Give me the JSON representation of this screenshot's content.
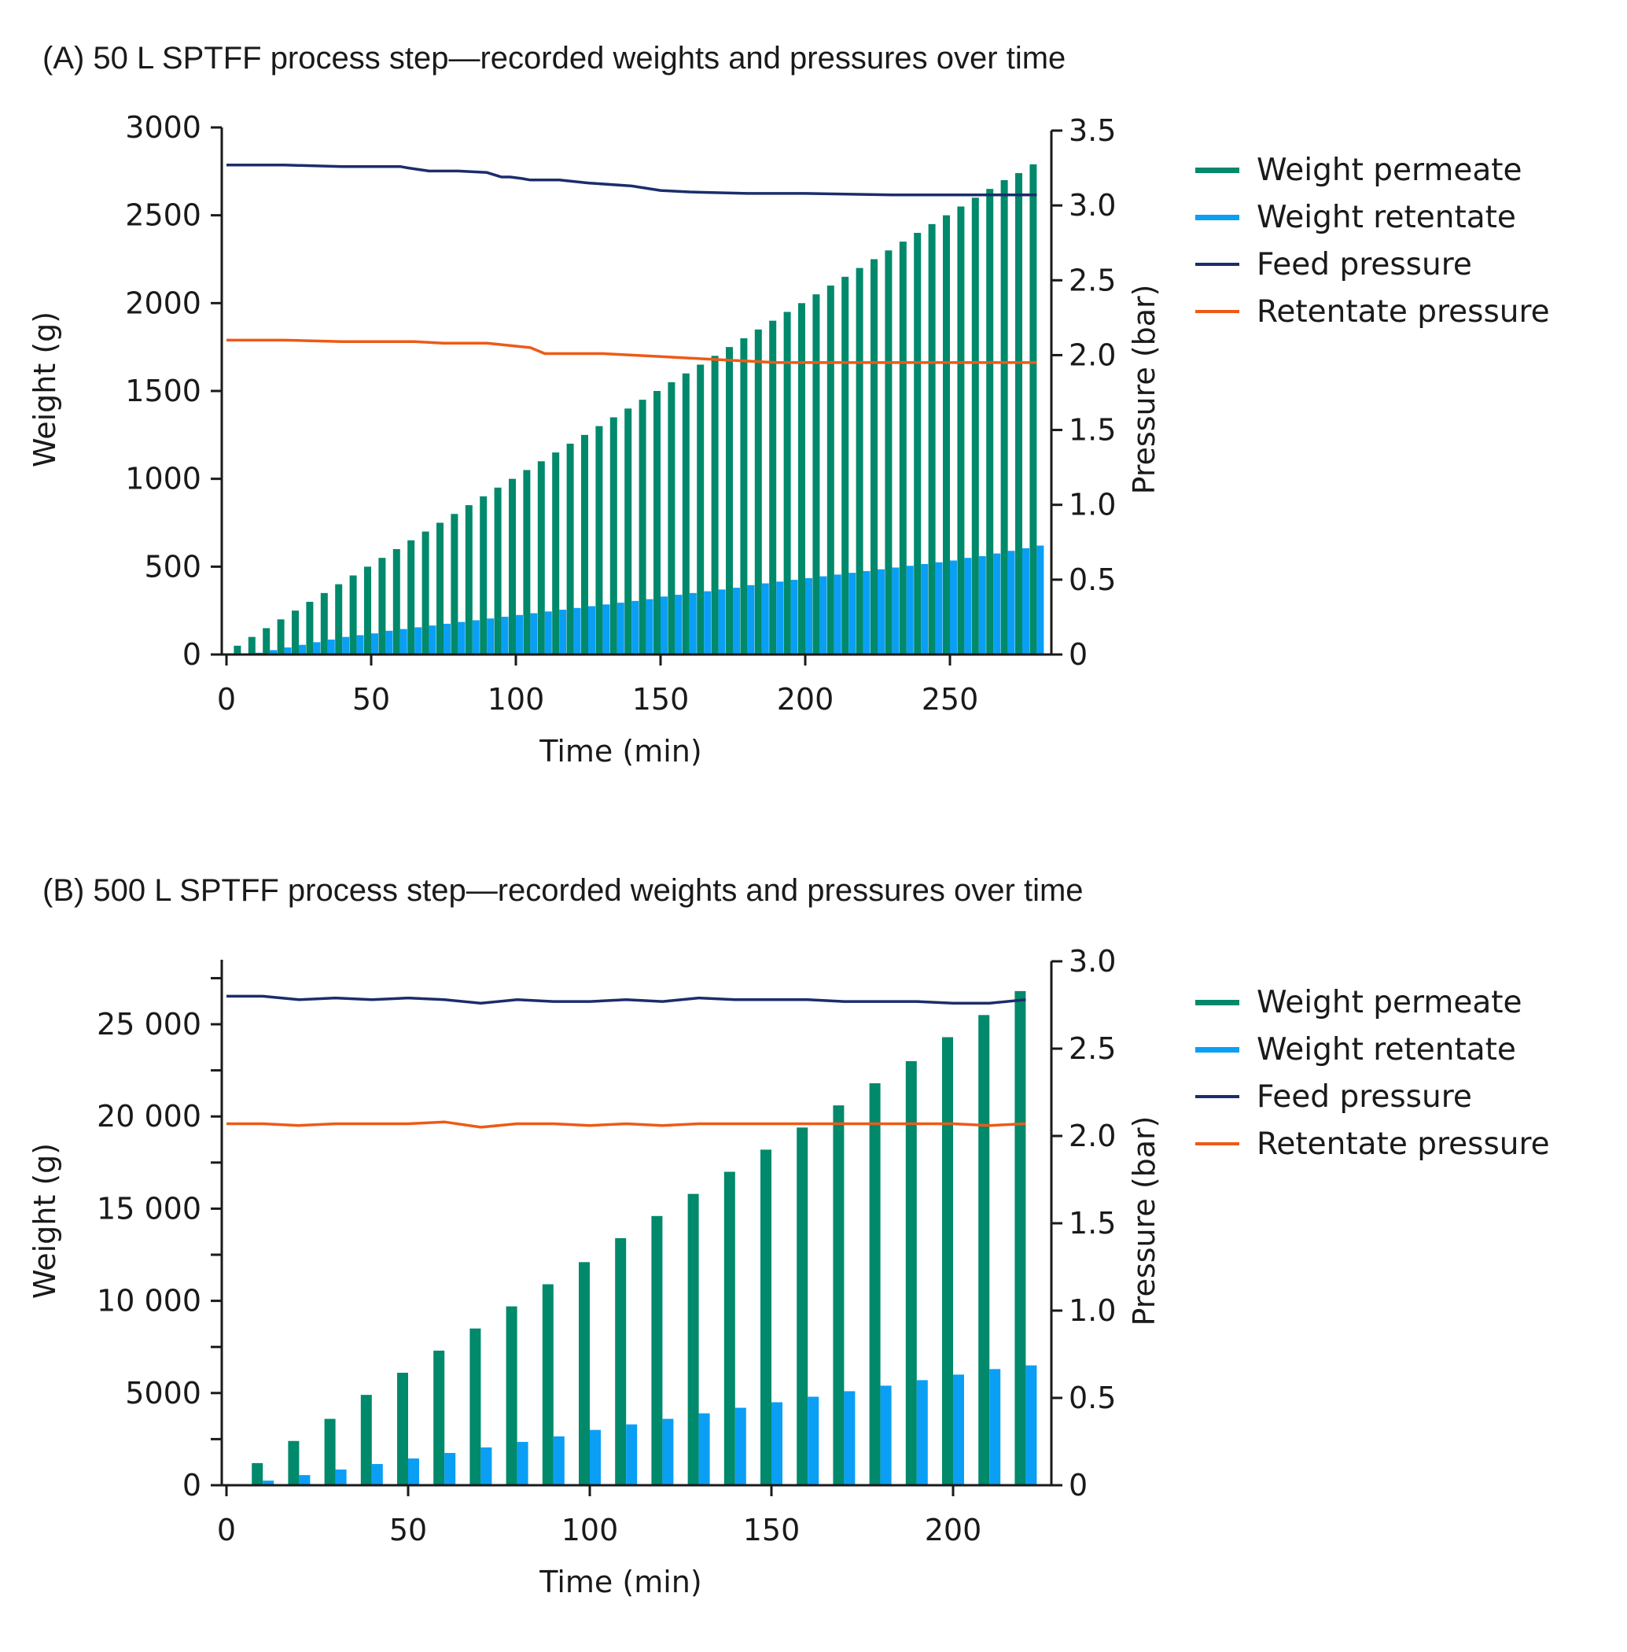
{
  "colors": {
    "permeate": "#00896b",
    "retentate": "#0a9ff5",
    "feed_pressure": "#1b2d6b",
    "retentate_pressure": "#ee5a16",
    "axis": "#1a1a1a"
  },
  "chart_data": [
    {
      "id": "A",
      "type": "bar",
      "title": "(A) 50 L SPTFF process step—recorded weights and pressures over time",
      "xlabel": "Time (min)",
      "ylabel": "Weight (g)",
      "y2label": "Pressure (bar)",
      "xlim": [
        0,
        285
      ],
      "ylim": [
        0,
        3000
      ],
      "y2lim": [
        0,
        3.5
      ],
      "xticks": [
        "0",
        "50",
        "100",
        "150",
        "200",
        "250"
      ],
      "xtick_values": [
        0,
        50,
        100,
        150,
        200,
        250
      ],
      "yticks": [
        "0",
        "500",
        "1000",
        "1500",
        "2000",
        "2500",
        "3000"
      ],
      "ytick_values": [
        0,
        500,
        1000,
        1500,
        2000,
        2500,
        3000
      ],
      "y2ticks": [
        "0",
        "0.5",
        "1.0",
        "1.5",
        "2.0",
        "2.5",
        "3.0",
        "3.5"
      ],
      "y2tick_values": [
        0,
        0.5,
        1.0,
        1.5,
        2.0,
        2.5,
        3.0,
        3.5
      ],
      "legend": [
        "Weight permeate",
        "Weight retentate",
        "Feed pressure",
        "Retentate pressure"
      ],
      "legend_position": "right",
      "grid": false,
      "x": [
        5,
        10,
        15,
        20,
        25,
        30,
        35,
        40,
        45,
        50,
        55,
        60,
        65,
        70,
        75,
        80,
        85,
        90,
        95,
        100,
        105,
        110,
        115,
        120,
        125,
        130,
        135,
        140,
        145,
        150,
        155,
        160,
        165,
        170,
        175,
        180,
        185,
        190,
        195,
        200,
        205,
        210,
        215,
        220,
        225,
        230,
        235,
        240,
        245,
        250,
        255,
        260,
        265,
        270,
        275,
        280
      ],
      "series": [
        {
          "name": "Weight permeate",
          "kind": "bar",
          "axis": "left",
          "values": [
            50,
            100,
            150,
            200,
            250,
            300,
            350,
            400,
            450,
            500,
            550,
            600,
            650,
            700,
            750,
            800,
            850,
            900,
            950,
            1000,
            1050,
            1100,
            1150,
            1200,
            1250,
            1300,
            1350,
            1400,
            1450,
            1500,
            1550,
            1600,
            1650,
            1700,
            1750,
            1800,
            1850,
            1900,
            1950,
            2000,
            2050,
            2100,
            2150,
            2200,
            2250,
            2300,
            2350,
            2400,
            2450,
            2500,
            2550,
            2600,
            2650,
            2700,
            2740,
            2790
          ]
        },
        {
          "name": "Weight retentate",
          "kind": "bar",
          "axis": "left",
          "values": [
            0,
            10,
            25,
            40,
            55,
            70,
            85,
            100,
            110,
            120,
            135,
            145,
            155,
            165,
            175,
            185,
            195,
            205,
            215,
            225,
            235,
            245,
            255,
            265,
            275,
            285,
            295,
            305,
            315,
            330,
            340,
            350,
            360,
            370,
            380,
            395,
            405,
            415,
            425,
            435,
            445,
            455,
            465,
            475,
            485,
            495,
            505,
            515,
            525,
            535,
            550,
            560,
            575,
            590,
            605,
            620
          ]
        },
        {
          "name": "Feed pressure",
          "kind": "line",
          "axis": "right",
          "x": [
            0,
            20,
            40,
            60,
            63,
            70,
            80,
            90,
            95,
            98,
            102,
            105,
            115,
            125,
            140,
            150,
            160,
            180,
            200,
            230,
            250,
            270,
            280
          ],
          "values": [
            3.27,
            3.27,
            3.26,
            3.26,
            3.25,
            3.23,
            3.23,
            3.22,
            3.19,
            3.19,
            3.18,
            3.17,
            3.17,
            3.15,
            3.13,
            3.1,
            3.09,
            3.08,
            3.08,
            3.07,
            3.07,
            3.07,
            3.07
          ]
        },
        {
          "name": "Retentate pressure",
          "kind": "line",
          "axis": "right",
          "x": [
            0,
            20,
            40,
            60,
            65,
            75,
            90,
            95,
            100,
            105,
            110,
            120,
            130,
            140,
            150,
            160,
            170,
            180,
            190,
            200,
            250,
            270,
            280
          ],
          "values": [
            2.1,
            2.1,
            2.09,
            2.09,
            2.09,
            2.08,
            2.08,
            2.07,
            2.06,
            2.05,
            2.01,
            2.01,
            2.01,
            2.0,
            1.99,
            1.98,
            1.97,
            1.96,
            1.95,
            1.95,
            1.95,
            1.95,
            1.95
          ]
        }
      ]
    },
    {
      "id": "B",
      "type": "bar",
      "title": "(B) 500 L SPTFF process step—recorded weights and pressures over time",
      "xlabel": "Time (min)",
      "ylabel": "Weight (g)",
      "y2label": "Pressure (bar)",
      "xlim": [
        0,
        227
      ],
      "ylim": [
        0,
        28500
      ],
      "y2lim": [
        0,
        3.0
      ],
      "xticks": [
        "0",
        "50",
        "100",
        "150",
        "200"
      ],
      "xtick_values": [
        0,
        50,
        100,
        150,
        200
      ],
      "yticks": [
        "0",
        "5000",
        "10 000",
        "15 000",
        "20 000",
        "25 000"
      ],
      "ytick_values": [
        0,
        5000,
        10000,
        15000,
        20000,
        25000
      ],
      "yminor_tick_values": [
        2500,
        7500,
        12500,
        17500,
        22500,
        27500
      ],
      "y2ticks": [
        "0",
        "0.5",
        "1.0",
        "1.5",
        "2.0",
        "2.5",
        "3.0"
      ],
      "y2tick_values": [
        0,
        0.5,
        1.0,
        1.5,
        2.0,
        2.5,
        3.0
      ],
      "legend": [
        "Weight permeate",
        "Weight retentate",
        "Feed pressure",
        "Retentate pressure"
      ],
      "legend_position": "right",
      "grid": false,
      "x": [
        10,
        20,
        30,
        40,
        50,
        60,
        70,
        80,
        90,
        100,
        110,
        120,
        130,
        140,
        150,
        160,
        170,
        180,
        190,
        200,
        210,
        220
      ],
      "series": [
        {
          "name": "Weight permeate",
          "kind": "bar",
          "axis": "left",
          "values": [
            1200,
            2400,
            3600,
            4900,
            6100,
            7300,
            8500,
            9700,
            10900,
            12100,
            13400,
            14600,
            15800,
            17000,
            18200,
            19400,
            20600,
            21800,
            23000,
            24300,
            25500,
            26800
          ]
        },
        {
          "name": "Weight retentate",
          "kind": "bar",
          "axis": "left",
          "values": [
            250,
            550,
            850,
            1150,
            1450,
            1750,
            2050,
            2350,
            2650,
            3000,
            3300,
            3600,
            3900,
            4200,
            4500,
            4800,
            5100,
            5400,
            5700,
            6000,
            6300,
            6500
          ]
        },
        {
          "name": "Feed pressure",
          "kind": "line",
          "axis": "right",
          "x": [
            0,
            10,
            20,
            30,
            40,
            50,
            60,
            70,
            80,
            90,
            100,
            110,
            120,
            130,
            140,
            150,
            160,
            170,
            180,
            190,
            200,
            210,
            220
          ],
          "values": [
            2.8,
            2.8,
            2.78,
            2.79,
            2.78,
            2.79,
            2.78,
            2.76,
            2.78,
            2.77,
            2.77,
            2.78,
            2.77,
            2.79,
            2.78,
            2.78,
            2.78,
            2.77,
            2.77,
            2.77,
            2.76,
            2.76,
            2.78
          ]
        },
        {
          "name": "Retentate pressure",
          "kind": "line",
          "axis": "right",
          "x": [
            0,
            10,
            20,
            30,
            40,
            50,
            60,
            70,
            80,
            90,
            100,
            110,
            120,
            130,
            140,
            150,
            160,
            170,
            180,
            190,
            200,
            210,
            220
          ],
          "values": [
            2.07,
            2.07,
            2.06,
            2.07,
            2.07,
            2.07,
            2.08,
            2.05,
            2.07,
            2.07,
            2.06,
            2.07,
            2.06,
            2.07,
            2.07,
            2.07,
            2.07,
            2.07,
            2.07,
            2.07,
            2.07,
            2.06,
            2.07
          ]
        }
      ]
    }
  ]
}
